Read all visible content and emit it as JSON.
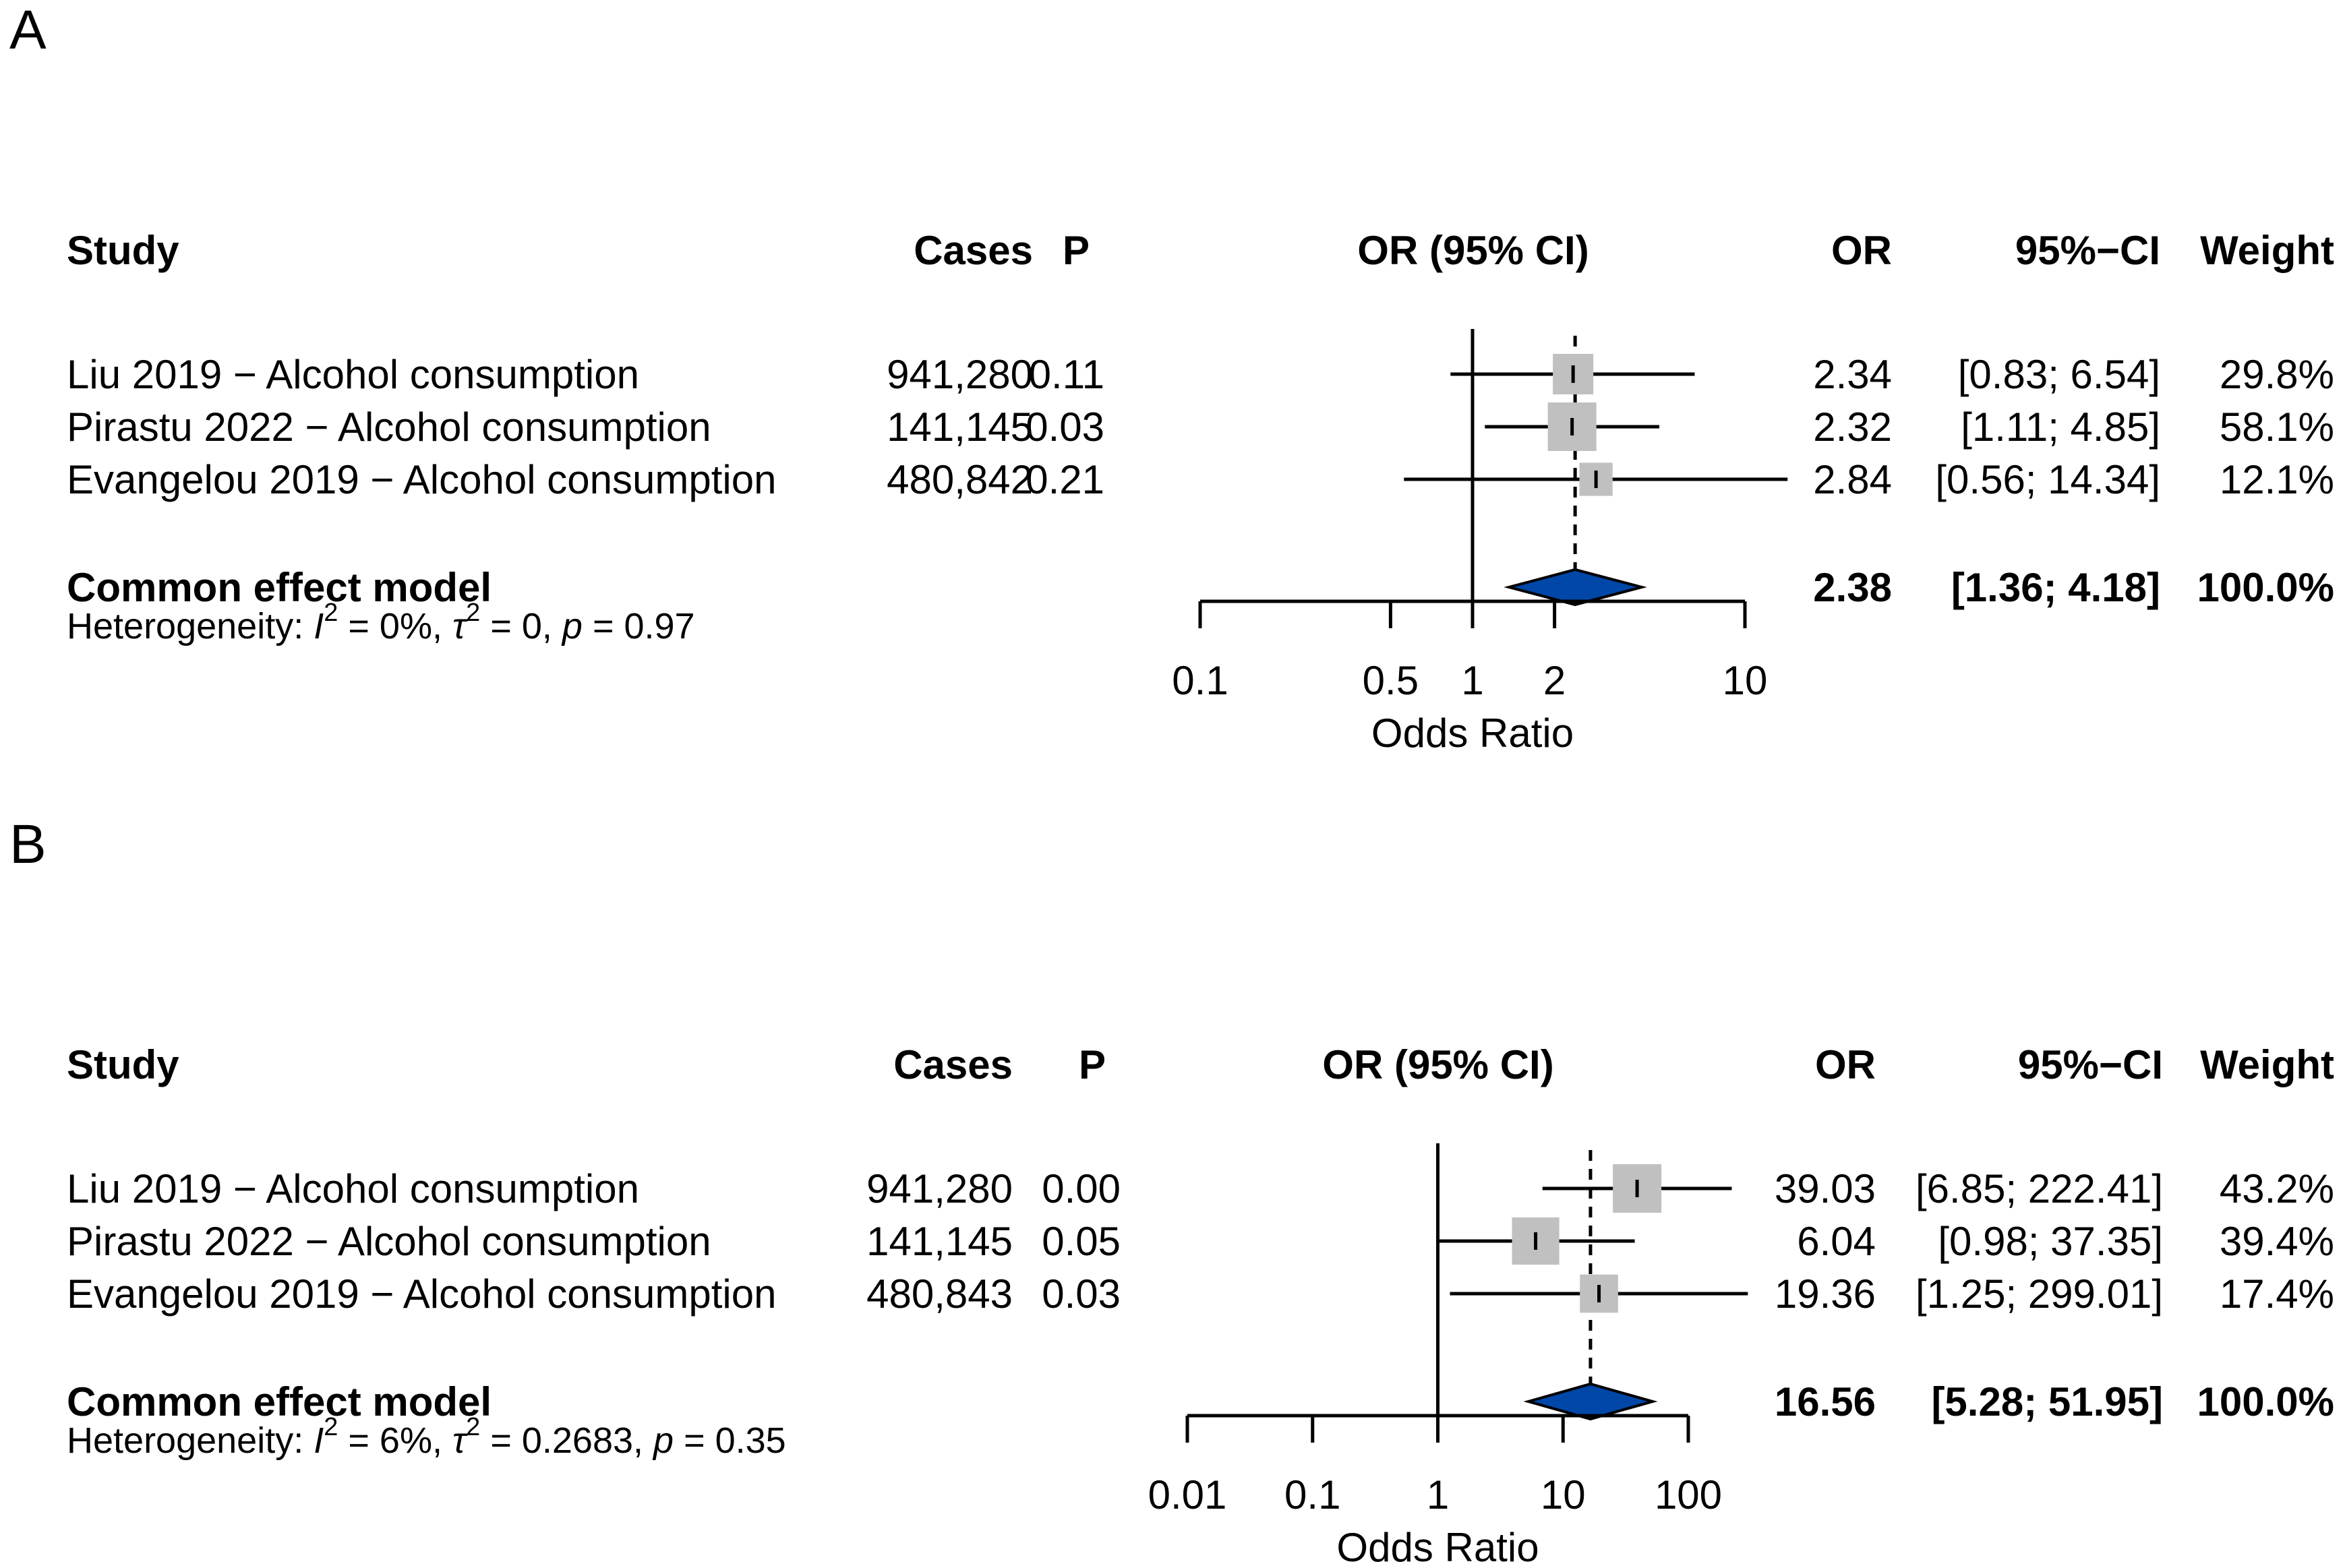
{
  "chart_data": [
    {
      "type": "forest",
      "panel_label": "A",
      "columns": {
        "study": "Study",
        "cases": "Cases",
        "p": "P",
        "plot": "OR (95% CI)",
        "or": "OR",
        "ci": "95%−CI",
        "weight": "Weight"
      },
      "studies": [
        {
          "label": "Liu 2019 − Alcohol consumption",
          "cases": "941,280",
          "p": "0.11",
          "or": 2.34,
          "lower": 0.83,
          "upper": 6.54,
          "or_text": "2.34",
          "ci_text": "[0.83;  6.54]",
          "weight": 29.8,
          "weight_text": "29.8%"
        },
        {
          "label": "Pirastu 2022 − Alcohol consumption",
          "cases": "141,145",
          "p": "0.03",
          "or": 2.32,
          "lower": 1.11,
          "upper": 4.85,
          "or_text": "2.32",
          "ci_text": "[1.11;  4.85]",
          "weight": 58.1,
          "weight_text": "58.1%"
        },
        {
          "label": "Evangelou 2019 − Alcohol consumption",
          "cases": "480,842",
          "p": "0.21",
          "or": 2.84,
          "lower": 0.56,
          "upper": 14.34,
          "or_text": "2.84",
          "ci_text": "[0.56; 14.34]",
          "weight": 12.1,
          "weight_text": "12.1%"
        }
      ],
      "summary": {
        "label": "Common effect model",
        "or": 2.38,
        "lower": 1.36,
        "upper": 4.18,
        "or_text": "2.38",
        "ci_text": "[1.36;  4.18]",
        "weight_text": "100.0%"
      },
      "heterogeneity": {
        "prefix": "Heterogeneity: ",
        "I": "I",
        "sup": "2",
        "i2_val": " = 0%,  ",
        "tau": "τ",
        "tau_val": " = 0, ",
        "p": "p",
        "p_val": " = 0.97"
      },
      "axis": {
        "label": "Odds Ratio",
        "scale": "log",
        "ticks": [
          0.1,
          0.5,
          1,
          2,
          10
        ],
        "tick_labels": [
          "0.1",
          "0.5",
          "1",
          "2",
          "10"
        ]
      },
      "colors": {
        "square": "#c0c0c0",
        "diamond": "#0047a8"
      }
    },
    {
      "type": "forest",
      "panel_label": "B",
      "columns": {
        "study": "Study",
        "cases": "Cases",
        "p": "P",
        "plot": "OR (95% CI)",
        "or": "OR",
        "ci": "95%−CI",
        "weight": "Weight"
      },
      "studies": [
        {
          "label": "Liu 2019 − Alcohol consumption",
          "cases": "941,280",
          "p": "0.00",
          "or": 39.03,
          "lower": 6.85,
          "upper": 222.41,
          "or_text": "39.03",
          "ci_text": "[6.85; 222.41]",
          "weight": 43.2,
          "weight_text": "43.2%"
        },
        {
          "label": "Pirastu 2022 − Alcohol consumption",
          "cases": "141,145",
          "p": "0.05",
          "or": 6.04,
          "lower": 0.98,
          "upper": 37.35,
          "or_text": "6.04",
          "ci_text": "[0.98;  37.35]",
          "weight": 39.4,
          "weight_text": "39.4%"
        },
        {
          "label": "Evangelou 2019 − Alcohol consumption",
          "cases": "480,843",
          "p": "0.03",
          "or": 19.36,
          "lower": 1.25,
          "upper": 299.01,
          "or_text": "19.36",
          "ci_text": "[1.25; 299.01]",
          "weight": 17.4,
          "weight_text": "17.4%"
        }
      ],
      "summary": {
        "label": "Common effect model",
        "or": 16.56,
        "lower": 5.28,
        "upper": 51.95,
        "or_text": "16.56",
        "ci_text": "[5.28;  51.95]",
        "weight_text": "100.0%"
      },
      "heterogeneity": {
        "prefix": "Heterogeneity: ",
        "I": "I",
        "sup": "2",
        "i2_val": " = 6%,  ",
        "tau": "τ",
        "tau_val": " = 0.2683, ",
        "p": "p",
        "p_val": " = 0.35"
      },
      "axis": {
        "label": "Odds Ratio",
        "scale": "log",
        "ticks": [
          0.01,
          0.1,
          1,
          10,
          100
        ],
        "tick_labels": [
          "0.01",
          "0.1",
          "1",
          "10",
          "100"
        ]
      },
      "colors": {
        "square": "#c0c0c0",
        "diamond": "#0047a8"
      }
    }
  ]
}
